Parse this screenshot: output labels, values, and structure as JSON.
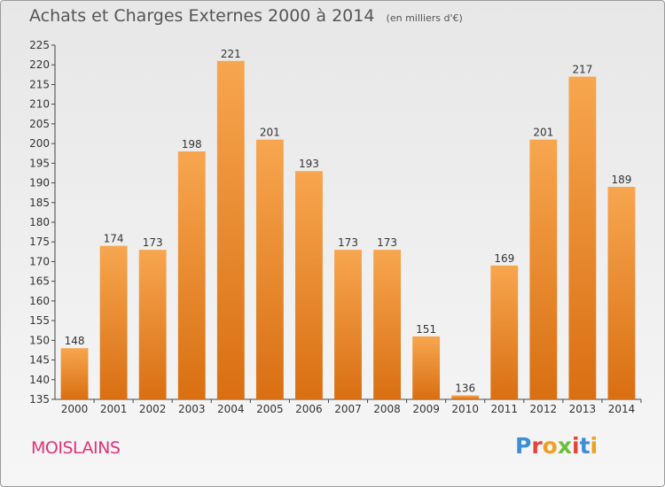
{
  "header": {
    "title": "Achats et Charges Externes 2000 à 2014",
    "subtitle": "(en milliers d'€)"
  },
  "footer": {
    "commune": "MOISLAINS",
    "logo_text": "Proxiti"
  },
  "colors": {
    "bar_top": "#f7a64f",
    "bar_bottom": "#d96f12",
    "commune_text": "#e0337a",
    "logo_letters": [
      "#3a8fd8",
      "#e8423c",
      "#f0a020",
      "#6cbf3a",
      "#e8423c",
      "#3a8fd8",
      "#f0a020"
    ]
  },
  "chart_data": {
    "type": "bar",
    "title": "Achats et Charges Externes 2000 à 2014",
    "xlabel": "",
    "ylabel": "",
    "categories": [
      "2000",
      "2001",
      "2002",
      "2003",
      "2004",
      "2005",
      "2006",
      "2007",
      "2008",
      "2009",
      "2010",
      "2011",
      "2012",
      "2013",
      "2014"
    ],
    "values": [
      148,
      174,
      173,
      198,
      221,
      201,
      193,
      173,
      173,
      151,
      136,
      169,
      201,
      217,
      189
    ],
    "ylim": [
      135,
      225
    ],
    "yticks": [
      135,
      140,
      145,
      150,
      155,
      160,
      165,
      170,
      175,
      180,
      185,
      190,
      195,
      200,
      205,
      210,
      215,
      220,
      225
    ],
    "grid": false,
    "legend": "none"
  }
}
